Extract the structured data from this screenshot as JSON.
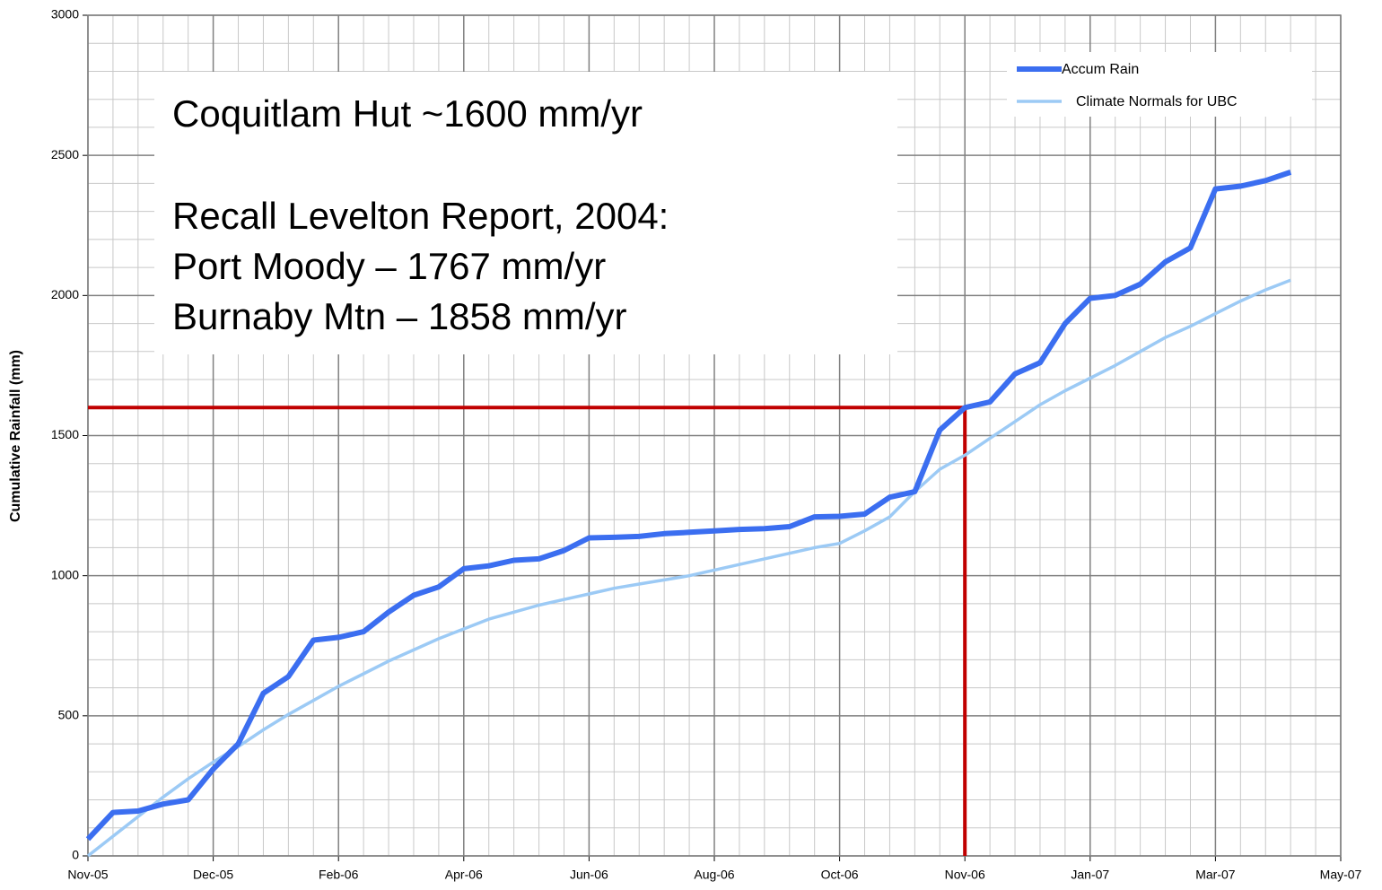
{
  "chart_data": {
    "type": "line",
    "y_label": "Cumulative Rainfall (mm)",
    "annotations": [
      "Coquitlam Hut ~1600 mm/yr",
      "Recall Levelton Report, 2004:",
      "Port Moody – 1767 mm/yr",
      "Burnaby Mtn – 1858 mm/yr"
    ],
    "categories": [
      "Nov-05",
      null,
      null,
      null,
      null,
      "Dec-05",
      null,
      null,
      null,
      null,
      "Feb-06",
      null,
      null,
      null,
      null,
      "Apr-06",
      null,
      null,
      null,
      null,
      "Jun-06",
      null,
      null,
      null,
      null,
      "Aug-06",
      null,
      null,
      null,
      null,
      "Oct-06",
      null,
      null,
      null,
      null,
      "Nov-06",
      null,
      null,
      null,
      null,
      "Jan-07",
      null,
      null,
      null,
      null,
      "Mar-07",
      null,
      null,
      null,
      null,
      "May-07"
    ],
    "series": [
      {
        "name": "Accum Rain",
        "color": "#3b6ef0",
        "values": [
          60,
          155,
          160,
          185,
          200,
          310,
          400,
          580,
          640,
          770,
          780,
          800,
          870,
          930,
          960,
          1025,
          1035,
          1055,
          1060,
          1090,
          1135,
          1137,
          1140,
          1150,
          1155,
          1160,
          1165,
          1168,
          1175,
          1210,
          1212,
          1220,
          1280,
          1300,
          1520,
          1600,
          1620,
          1720,
          1760,
          1900,
          1990,
          2000,
          2040,
          2120,
          2170,
          2380,
          2390,
          2410,
          2440,
          null,
          null
        ]
      },
      {
        "name": "Climate Normals for UBC",
        "color": "#9ccaf5",
        "values": [
          0,
          70,
          140,
          210,
          275,
          335,
          390,
          450,
          505,
          555,
          605,
          650,
          695,
          735,
          775,
          810,
          845,
          870,
          895,
          915,
          935,
          955,
          970,
          985,
          1000,
          1020,
          1040,
          1060,
          1080,
          1100,
          1115,
          1160,
          1210,
          1300,
          1380,
          1430,
          1490,
          1550,
          1610,
          1660,
          1705,
          1750,
          1800,
          1850,
          1890,
          1935,
          1980,
          2020,
          2055,
          null,
          null
        ]
      }
    ],
    "reference_line": {
      "value": 1600,
      "x": "Nov-06",
      "color": "#c00000"
    },
    "ylim": [
      0,
      3000
    ],
    "yticks": [
      0,
      500,
      1000,
      1500,
      2000,
      2500,
      3000
    ],
    "y_minor_ticks": [
      100,
      200,
      300,
      400,
      600,
      700,
      800,
      900,
      1100,
      1200,
      1300,
      1400,
      1600,
      1700,
      1800,
      1900,
      2100,
      2200,
      2300,
      2400,
      2600,
      2700,
      2800,
      2900
    ],
    "grid": true,
    "legend": "top-right"
  }
}
